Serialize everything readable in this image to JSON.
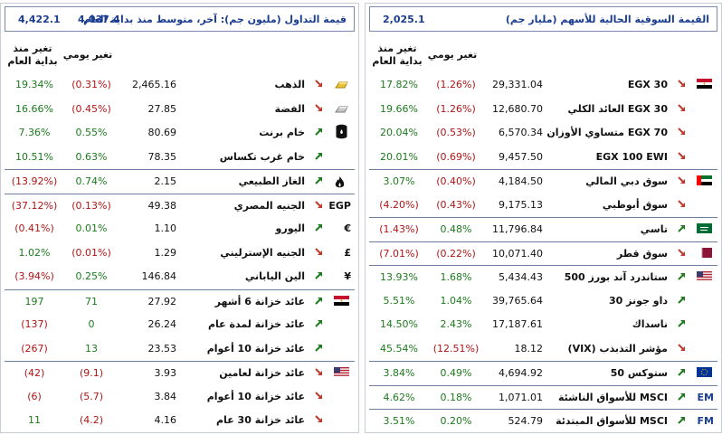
{
  "left": {
    "header": {
      "title": "قيمة التداول (مليون جم): آخر، متوسط منذ بداية العام",
      "last": "4,037.4",
      "avg": "4,422.1"
    },
    "col_daily": "تغير يومي",
    "col_ytd_1": "تغير منذ",
    "col_ytd_2": "بداية العام",
    "rows": [
      {
        "name": "الذهب",
        "value": "2,465.16",
        "daily": "(0.31%)",
        "ytd": "19.34%",
        "icon": "gold-bar-icon",
        "dir": "down"
      },
      {
        "name": "الفضة",
        "value": "27.85",
        "daily": "(0.45%)",
        "ytd": "16.66%",
        "icon": "silver-bar-icon",
        "dir": "down"
      },
      {
        "name": "خام برنت",
        "value": "80.69",
        "daily": "0.55%",
        "ytd": "7.36%",
        "icon": "oil-barrel-icon",
        "dir": "up"
      },
      {
        "name": "خام غرب تكساس",
        "value": "78.35",
        "daily": "0.63%",
        "ytd": "10.51%",
        "icon": "",
        "dir": "up"
      },
      {
        "name": "الغاز الطبيعي",
        "value": "2.15",
        "daily": "0.74%",
        "ytd": "(13.92%)",
        "icon": "flame-icon",
        "dir": "up"
      },
      {
        "name": "الجنيه المصري",
        "value": "49.38",
        "daily": "(0.13%)",
        "ytd": "(37.12%)",
        "icon": "egp-icon",
        "sym": "EGP",
        "dir": "down"
      },
      {
        "name": "اليورو",
        "value": "1.10",
        "daily": "0.01%",
        "ytd": "(0.41%)",
        "icon": "euro-icon",
        "sym": "€",
        "dir": "up"
      },
      {
        "name": "الجنيه الإسترليني",
        "value": "1.29",
        "daily": "(0.01%)",
        "ytd": "1.02%",
        "icon": "pound-icon",
        "sym": "£",
        "dir": "down"
      },
      {
        "name": "الين الياباني",
        "value": "146.84",
        "daily": "0.25%",
        "ytd": "(3.94%)",
        "icon": "yen-icon",
        "sym": "¥",
        "dir": "up"
      },
      {
        "name": "عائد خزانة 6 أشهر",
        "value": "27.92",
        "daily": "71",
        "ytd": "197",
        "icon": "egypt-flag-icon",
        "dir": "up"
      },
      {
        "name": "عائد خزانة لمدة عام",
        "value": "26.24",
        "daily": "0",
        "ytd": "(137)",
        "icon": "",
        "dir": "up"
      },
      {
        "name": "عائد خزانة 10 أعوام",
        "value": "23.53",
        "daily": "13",
        "ytd": "(267)",
        "icon": "",
        "dir": "up"
      },
      {
        "name": "عائد خزانة لعامين",
        "value": "3.93",
        "daily": "(9.1)",
        "ytd": "(42)",
        "icon": "us-flag-icon",
        "dir": "down"
      },
      {
        "name": "عائد خزانة 10 أعوام",
        "value": "3.84",
        "daily": "(5.7)",
        "ytd": "(6)",
        "icon": "",
        "dir": "down"
      },
      {
        "name": "عائد خزانة 30 عام",
        "value": "4.16",
        "daily": "(4.2)",
        "ytd": "11",
        "icon": "",
        "dir": "down"
      }
    ]
  },
  "right": {
    "header": {
      "title": "القيمة السوقية الحالية للأسهم (مليار جم)",
      "value": "2,025.1"
    },
    "col_daily": "تغير يومي",
    "col_ytd_1": "تغير منذ",
    "col_ytd_2": "بداية العام",
    "rows": [
      {
        "name": "EGX 30",
        "value": "29,331.04",
        "daily": "(1.26%)",
        "ytd": "17.82%",
        "icon": "egypt-flag-icon",
        "dir": "down"
      },
      {
        "name": "EGX 30 العائد الكلي",
        "value": "12,680.70",
        "daily": "(1.26%)",
        "ytd": "19.66%",
        "icon": "",
        "dir": "down"
      },
      {
        "name": "EGX 70 متساوي الأوزان",
        "value": "6,570.34",
        "daily": "(0.53%)",
        "ytd": "20.04%",
        "icon": "",
        "dir": "down"
      },
      {
        "name": "EGX 100 EWI",
        "value": "9,457.50",
        "daily": "(0.69%)",
        "ytd": "20.01%",
        "icon": "",
        "dir": "down"
      },
      {
        "name": "سوق دبي المالي",
        "value": "4,184.50",
        "daily": "(0.40%)",
        "ytd": "3.07%",
        "icon": "uae-flag-icon",
        "dir": "down"
      },
      {
        "name": "سوق أبوظبي",
        "value": "9,175.13",
        "daily": "(0.43%)",
        "ytd": "(4.20%)",
        "icon": "",
        "dir": "down"
      },
      {
        "name": "تاسي",
        "value": "11,796.84",
        "daily": "0.48%",
        "ytd": "(1.43%)",
        "icon": "saudi-flag-icon",
        "dir": "up"
      },
      {
        "name": "سوق قطر",
        "value": "10,071.40",
        "daily": "(0.22%)",
        "ytd": "(7.01%)",
        "icon": "qatar-flag-icon",
        "dir": "down"
      },
      {
        "name": "ستاندرد آند بورز 500",
        "value": "5,434.43",
        "daily": "1.68%",
        "ytd": "13.93%",
        "icon": "us-flag-icon",
        "dir": "up"
      },
      {
        "name": "داو جونز 30",
        "value": "39,765.64",
        "daily": "1.04%",
        "ytd": "5.51%",
        "icon": "",
        "dir": "up"
      },
      {
        "name": "ناسداك",
        "value": "17,187.61",
        "daily": "2.43%",
        "ytd": "14.50%",
        "icon": "",
        "dir": "up"
      },
      {
        "name": "مؤشر التذبذب (VIX)",
        "value": "18.12",
        "daily": "(12.51%)",
        "ytd": "45.54%",
        "icon": "",
        "dir": "down"
      },
      {
        "name": "ستوكس 50",
        "value": "4,694.92",
        "daily": "0.49%",
        "ytd": "3.84%",
        "icon": "eu-flag-icon",
        "dir": "up"
      },
      {
        "name": "MSCI للأسواق الناشئة",
        "value": "1,071.01",
        "daily": "0.18%",
        "ytd": "4.62%",
        "icon": "em-icon",
        "sym": "EM",
        "dir": "up"
      },
      {
        "name": "MSCI للأسواق المبتدئة",
        "value": "524.79",
        "daily": "0.20%",
        "ytd": "3.51%",
        "icon": "fm-icon",
        "sym": "FM",
        "dir": "up"
      }
    ]
  },
  "colors": {
    "positive": "#1d7a1d",
    "negative": "#b01515",
    "header_text": "#1a3d8f",
    "arrow_up": "#1d7a1d",
    "arrow_down": "#c0392b"
  }
}
